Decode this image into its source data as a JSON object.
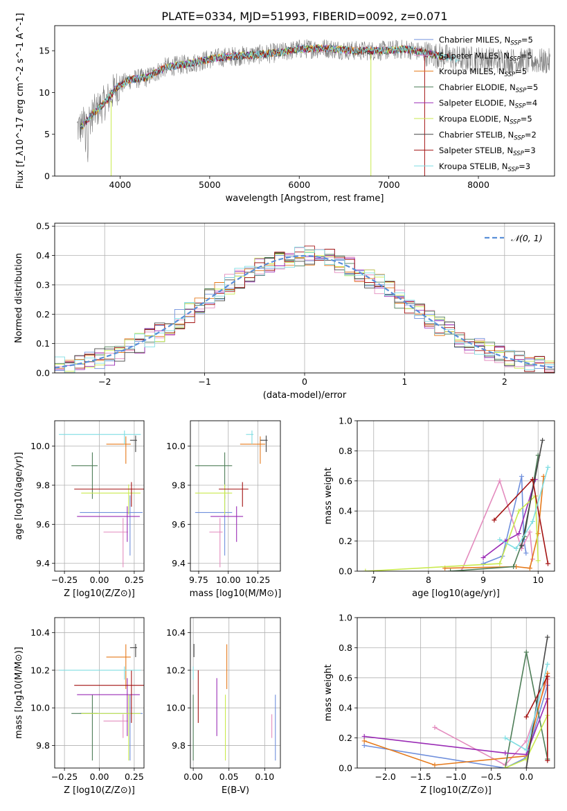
{
  "title": "PLATE=0334, MJD=51993, FIBERID=0092, z=0.071",
  "colors": {
    "chabrier_miles": "#6f8fdc",
    "salpeter_miles": "#e38bbe",
    "kroupa_miles": "#e5791a",
    "chabrier_elodie": "#4d7d57",
    "salpeter_elodie": "#9a2bb5",
    "kroupa_elodie": "#c9ea4e",
    "chabrier_stelib": "#444444",
    "salpeter_stelib": "#a31212",
    "kroupa_stelib": "#7fdde2",
    "data_spectrum": "#7a7a7a",
    "normal_curve": "#5a8fd8",
    "grid": "#b0b0b0"
  },
  "chart_data": [
    {
      "id": "spectrum",
      "type": "line",
      "xlabel": "wavelength [Angstrom, rest frame]",
      "ylabel": "Flux [f_λ10^-17 erg cm^-2 s^-1 A^-1]",
      "xlim": [
        3270,
        8850
      ],
      "ylim": [
        0,
        18
      ],
      "xticks": [
        "4000",
        "5000",
        "6000",
        "7000",
        "8000"
      ],
      "yticks": [
        "0",
        "5",
        "10",
        "15"
      ],
      "grid": false,
      "legend_position": "top-right",
      "series": [
        {
          "name": "Chabrier MILES",
          "nssp": "5",
          "color_key": "chabrier_miles"
        },
        {
          "name": "Salpeter MILES",
          "nssp": "5",
          "color_key": "salpeter_miles"
        },
        {
          "name": "Kroupa MILES",
          "nssp": "5",
          "color_key": "kroupa_miles"
        },
        {
          "name": "Chabrier ELODIE",
          "nssp": "5",
          "color_key": "chabrier_elodie"
        },
        {
          "name": "Salpeter ELODIE",
          "nssp": "4",
          "color_key": "salpeter_elodie"
        },
        {
          "name": "Kroupa ELODIE",
          "nssp": "5",
          "color_key": "kroupa_elodie"
        },
        {
          "name": "Chabrier STELIB",
          "nssp": "2",
          "color_key": "chabrier_stelib"
        },
        {
          "name": "Salpeter STELIB",
          "nssp": "3",
          "color_key": "salpeter_stelib"
        },
        {
          "name": "Kroupa STELIB",
          "nssp": "3",
          "color_key": "kroupa_stelib"
        }
      ],
      "continuum": [
        [
          3560,
          5.8
        ],
        [
          3700,
          7.5
        ],
        [
          3850,
          9.0
        ],
        [
          3950,
          10.5
        ],
        [
          4100,
          11.5
        ],
        [
          4300,
          11.8
        ],
        [
          4500,
          13.0
        ],
        [
          4800,
          13.5
        ],
        [
          5000,
          14.0
        ],
        [
          5200,
          14.3
        ],
        [
          5500,
          14.5
        ],
        [
          5800,
          14.8
        ],
        [
          6000,
          15.2
        ],
        [
          6300,
          15.3
        ],
        [
          6600,
          15.0
        ],
        [
          6900,
          15.0
        ],
        [
          7200,
          15.2
        ],
        [
          7500,
          14.5
        ],
        [
          7800,
          14.0
        ],
        [
          8000,
          14.0
        ],
        [
          8300,
          13.8
        ],
        [
          8800,
          13.7
        ]
      ]
    },
    {
      "id": "residual_hist",
      "type": "line",
      "xlabel": "(data-model)/error",
      "ylabel": "Normed distribution",
      "xlim": [
        -2.5,
        2.5
      ],
      "ylim": [
        0,
        0.51
      ],
      "xticks": [
        "−2",
        "−1",
        "0",
        "1",
        "2"
      ],
      "yticks": [
        "0.0",
        "0.1",
        "0.2",
        "0.3",
        "0.4",
        "0.5"
      ],
      "grid": true,
      "legend": "𝒩(0, 1)",
      "legend_position": "top-right"
    },
    {
      "id": "age_vs_Z",
      "type": "scatter",
      "xlabel": "Z [log10(Z/Z⊙)]",
      "ylabel": "age [log10(age/yr)]",
      "xlim": [
        -0.32,
        0.32
      ],
      "ylim": [
        9.36,
        10.13
      ],
      "xticks": [
        "−0.25",
        "0.00",
        "0.25"
      ],
      "yticks": [
        "9.4",
        "9.6",
        "9.8",
        "10.0"
      ],
      "grid": true,
      "points": [
        {
          "color_key": "chabrier_miles",
          "x": 0.22,
          "y": 9.66,
          "xerr": 0.36,
          "yerr": 0.22
        },
        {
          "color_key": "salpeter_miles",
          "x": 0.17,
          "y": 9.56,
          "xerr": 0.14,
          "yerr": 0.18
        },
        {
          "color_key": "kroupa_miles",
          "x": 0.19,
          "y": 10.01,
          "xerr": 0.14,
          "yerr": 0.1
        },
        {
          "color_key": "chabrier_elodie",
          "x": -0.05,
          "y": 9.9,
          "xerr": 0.15,
          "yerr": 0.17
        },
        {
          "color_key": "salpeter_elodie",
          "x": 0.2,
          "y": 9.64,
          "xerr": 0.36,
          "yerr": 0.13
        },
        {
          "color_key": "kroupa_elodie",
          "x": 0.21,
          "y": 9.76,
          "xerr": 0.34,
          "yerr": 0.11
        },
        {
          "color_key": "chabrier_stelib",
          "x": 0.26,
          "y": 10.03,
          "xerr": 0.04,
          "yerr": 0.06
        },
        {
          "color_key": "salpeter_stelib",
          "x": 0.23,
          "y": 9.78,
          "xerr": 0.41,
          "yerr": 0.09
        },
        {
          "color_key": "kroupa_stelib",
          "x": 0.18,
          "y": 10.06,
          "xerr": 0.47,
          "yerr": 0.05
        }
      ]
    },
    {
      "id": "age_vs_mass",
      "type": "scatter",
      "xlabel": "mass [log10(M/M⊙)]",
      "ylabel": "",
      "xlim": [
        9.68,
        10.44
      ],
      "ylim": [
        9.36,
        10.13
      ],
      "xticks": [
        "9.75",
        "10.00",
        "10.25"
      ],
      "yticks": [
        "9.4",
        "9.6",
        "9.8",
        "10.0"
      ],
      "grid": true,
      "points": [
        {
          "color_key": "chabrier_miles",
          "x": 9.97,
          "y": 9.66,
          "xerr": 0.25,
          "yerr": 0.22
        },
        {
          "color_key": "salpeter_miles",
          "x": 9.93,
          "y": 9.56,
          "xerr": 0.09,
          "yerr": 0.18
        },
        {
          "color_key": "kroupa_miles",
          "x": 10.27,
          "y": 10.01,
          "xerr": 0.17,
          "yerr": 0.1
        },
        {
          "color_key": "chabrier_elodie",
          "x": 9.97,
          "y": 9.9,
          "xerr": 0.25,
          "yerr": 0.17
        },
        {
          "color_key": "salpeter_elodie",
          "x": 10.07,
          "y": 9.64,
          "xerr": 0.22,
          "yerr": 0.13
        },
        {
          "color_key": "kroupa_elodie",
          "x": 9.97,
          "y": 9.76,
          "xerr": 0.25,
          "yerr": 0.11
        },
        {
          "color_key": "chabrier_stelib",
          "x": 10.32,
          "y": 10.03,
          "xerr": 0.05,
          "yerr": 0.06
        },
        {
          "color_key": "salpeter_stelib",
          "x": 10.12,
          "y": 9.78,
          "xerr": 0.2,
          "yerr": 0.09
        },
        {
          "color_key": "kroupa_stelib",
          "x": 10.2,
          "y": 10.06,
          "xerr": 0.05,
          "yerr": 0.05
        }
      ]
    },
    {
      "id": "mass_weight_vs_age",
      "type": "line",
      "xlabel": "age [log10(age/yr)]",
      "ylabel": "mass weight",
      "xlim": [
        6.7,
        10.3
      ],
      "ylim": [
        0,
        1.0
      ],
      "xticks": [
        "7",
        "8",
        "9",
        "10"
      ],
      "yticks": [
        "0.0",
        "0.2",
        "0.4",
        "0.6",
        "0.8",
        "1.0"
      ],
      "grid": true,
      "series": [
        {
          "color_key": "chabrier_miles",
          "x": [
            9.0,
            9.35,
            9.7,
            9.74,
            9.78
          ],
          "y": [
            0.05,
            0.1,
            0.63,
            0.21,
            0.12
          ]
        },
        {
          "color_key": "salpeter_miles",
          "x": [
            8.6,
            9.3,
            9.7,
            9.85,
            9.9
          ],
          "y": [
            0.0,
            0.6,
            0.15,
            0.26,
            0.08
          ]
        },
        {
          "color_key": "kroupa_miles",
          "x": [
            8.3,
            9.6,
            9.85,
            10.0,
            10.1
          ],
          "y": [
            0.02,
            0.03,
            0.02,
            0.25,
            0.63
          ]
        },
        {
          "color_key": "chabrier_elodie",
          "x": [
            8.4,
            9.55,
            9.75,
            10.0
          ],
          "y": [
            0.0,
            0.03,
            0.23,
            0.77
          ]
        },
        {
          "color_key": "salpeter_elodie",
          "x": [
            9.0,
            9.4,
            9.65,
            9.95
          ],
          "y": [
            0.09,
            0.2,
            0.25,
            0.61
          ]
        },
        {
          "color_key": "kroupa_elodie",
          "x": [
            6.85,
            9.3,
            9.65,
            9.95,
            10.0
          ],
          "y": [
            0.0,
            0.05,
            0.4,
            0.5,
            0.07
          ]
        },
        {
          "color_key": "chabrier_stelib",
          "x": [
            9.7,
            10.08
          ],
          "y": [
            0.17,
            0.87
          ]
        },
        {
          "color_key": "salpeter_stelib",
          "x": [
            9.2,
            9.9,
            10.18
          ],
          "y": [
            0.34,
            0.61,
            0.05
          ]
        },
        {
          "color_key": "kroupa_stelib",
          "x": [
            9.3,
            9.6,
            9.9,
            10.18
          ],
          "y": [
            0.21,
            0.15,
            0.33,
            0.69
          ]
        }
      ]
    },
    {
      "id": "mass_vs_Z",
      "type": "scatter",
      "xlabel": "Z [log10(Z/Z⊙)]",
      "ylabel": "mass [log10(M/M⊙)]",
      "xlim": [
        -0.32,
        0.32
      ],
      "ylim": [
        9.68,
        10.48
      ],
      "xticks": [
        "−0.25",
        "0.00",
        "0.25"
      ],
      "yticks": [
        "9.8",
        "10.0",
        "10.2",
        "10.4"
      ],
      "grid": true,
      "points": [
        {
          "color_key": "chabrier_miles",
          "x": 0.22,
          "y": 9.97,
          "xerr": 0.36,
          "yerr": 0.25
        },
        {
          "color_key": "salpeter_miles",
          "x": 0.17,
          "y": 9.93,
          "xerr": 0.14,
          "yerr": 0.09
        },
        {
          "color_key": "kroupa_miles",
          "x": 0.19,
          "y": 10.27,
          "xerr": 0.14,
          "yerr": 0.17
        },
        {
          "color_key": "chabrier_elodie",
          "x": -0.05,
          "y": 9.97,
          "xerr": 0.15,
          "yerr": 0.25
        },
        {
          "color_key": "salpeter_elodie",
          "x": 0.2,
          "y": 10.07,
          "xerr": 0.36,
          "yerr": 0.22
        },
        {
          "color_key": "kroupa_elodie",
          "x": 0.21,
          "y": 9.97,
          "xerr": 0.34,
          "yerr": 0.25
        },
        {
          "color_key": "chabrier_stelib",
          "x": 0.26,
          "y": 10.32,
          "xerr": 0.04,
          "yerr": 0.05
        },
        {
          "color_key": "salpeter_stelib",
          "x": 0.23,
          "y": 10.12,
          "xerr": 0.41,
          "yerr": 0.2
        },
        {
          "color_key": "kroupa_stelib",
          "x": 0.18,
          "y": 10.2,
          "xerr": 0.47,
          "yerr": 0.05
        }
      ]
    },
    {
      "id": "mass_vs_ebv",
      "type": "scatter",
      "xlabel": "E(B-V)",
      "ylabel": "",
      "xlim": [
        -0.004,
        0.122
      ],
      "ylim": [
        9.68,
        10.48
      ],
      "xticks": [
        "0.00",
        "0.05",
        "0.10"
      ],
      "yticks": [
        "9.8",
        "10.0",
        "10.2",
        "10.4"
      ],
      "grid": true,
      "points": [
        {
          "color_key": "chabrier_miles",
          "x": 0.115,
          "y": 9.97,
          "xerr": 0.0,
          "yerr": 0.25
        },
        {
          "color_key": "salpeter_miles",
          "x": 0.11,
          "y": 9.93,
          "xerr": 0.0,
          "yerr": 0.09
        },
        {
          "color_key": "kroupa_miles",
          "x": 0.047,
          "y": 10.27,
          "xerr": 0.0,
          "yerr": 0.17
        },
        {
          "color_key": "chabrier_elodie",
          "x": 0.0,
          "y": 9.97,
          "xerr": 0.0,
          "yerr": 0.25
        },
        {
          "color_key": "salpeter_elodie",
          "x": 0.033,
          "y": 10.07,
          "xerr": 0.0,
          "yerr": 0.22
        },
        {
          "color_key": "kroupa_elodie",
          "x": 0.045,
          "y": 9.97,
          "xerr": 0.0,
          "yerr": 0.25
        },
        {
          "color_key": "chabrier_stelib",
          "x": 0.001,
          "y": 10.32,
          "xerr": 0.0,
          "yerr": 0.05
        },
        {
          "color_key": "salpeter_stelib",
          "x": 0.007,
          "y": 10.12,
          "xerr": 0.0,
          "yerr": 0.2
        },
        {
          "color_key": "kroupa_stelib",
          "x": 0.0,
          "y": 10.2,
          "xerr": 0.0,
          "yerr": 0.05
        }
      ]
    },
    {
      "id": "mass_weight_vs_Z",
      "type": "line",
      "xlabel": "Z [log10(Z/Z⊙)]",
      "ylabel": "mass weight",
      "xlim": [
        -2.4,
        0.4
      ],
      "ylim": [
        0,
        1.0
      ],
      "xticks": [
        "−2.0",
        "−1.5",
        "−1.0",
        "−0.5",
        "0.0"
      ],
      "yticks": [
        "0.0",
        "0.2",
        "0.4",
        "0.6",
        "0.8",
        "1.0"
      ],
      "grid": true,
      "series": [
        {
          "color_key": "chabrier_miles",
          "x": [
            -2.3,
            -0.3,
            0.0,
            0.3
          ],
          "y": [
            0.15,
            0.0,
            0.07,
            0.55
          ]
        },
        {
          "color_key": "salpeter_miles",
          "x": [
            -1.3,
            -0.3,
            0.0,
            0.3
          ],
          "y": [
            0.27,
            0.02,
            0.18,
            0.59
          ]
        },
        {
          "color_key": "kroupa_miles",
          "x": [
            -2.3,
            -1.3,
            0.0,
            0.3
          ],
          "y": [
            0.18,
            0.02,
            0.08,
            0.63
          ]
        },
        {
          "color_key": "chabrier_elodie",
          "x": [
            -0.3,
            0.0,
            0.3
          ],
          "y": [
            0.0,
            0.77,
            0.06
          ]
        },
        {
          "color_key": "salpeter_elodie",
          "x": [
            -2.3,
            -0.3,
            0.0,
            0.3
          ],
          "y": [
            0.21,
            0.1,
            0.09,
            0.46
          ]
        },
        {
          "color_key": "kroupa_elodie",
          "x": [
            -0.3,
            0.0,
            0.3
          ],
          "y": [
            0.0,
            0.06,
            0.35
          ]
        },
        {
          "color_key": "chabrier_stelib",
          "x": [
            0.0,
            0.3
          ],
          "y": [
            0.0,
            0.87
          ]
        },
        {
          "color_key": "salpeter_stelib",
          "x": [
            0.0,
            0.3,
            0.3
          ],
          "y": [
            0.34,
            0.61,
            0.05
          ]
        },
        {
          "color_key": "kroupa_stelib",
          "x": [
            -0.3,
            0.0,
            0.3
          ],
          "y": [
            0.2,
            0.12,
            0.69
          ]
        }
      ]
    }
  ]
}
